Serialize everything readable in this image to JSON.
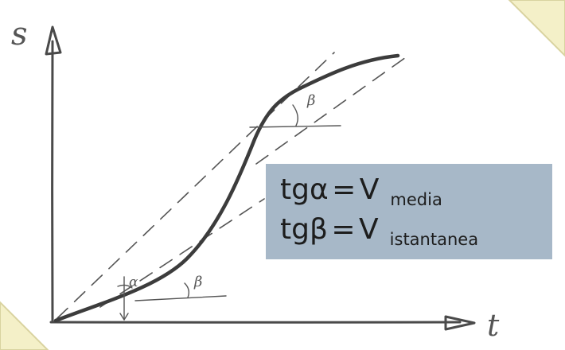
{
  "axes": {
    "y_label": "s",
    "x_label": "t"
  },
  "angles": {
    "alpha": "α",
    "beta_top": "β",
    "beta_bottom": "β"
  },
  "formulas": [
    {
      "lhs": "tgα",
      "eq": "=",
      "rhs": "V",
      "sub": "media"
    },
    {
      "lhs": "tgβ",
      "eq": "=",
      "rhs": "V",
      "sub": "istantanea"
    }
  ],
  "colors": {
    "formula_box": "#a7b8c8",
    "ink": "#4a4a4a",
    "corner_ribbon": "#f4f0c8"
  }
}
